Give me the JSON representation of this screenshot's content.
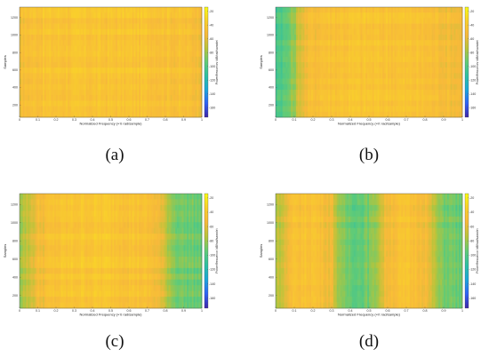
{
  "captions": [
    "(a)",
    "(b)",
    "(c)",
    "(d)"
  ],
  "chart_data": [
    {
      "type": "heatmap",
      "xlabel": "Normalized Frequency (×π rad/sample)",
      "ylabel": "Samples",
      "xticks": [
        "0",
        "0.1",
        "0.2",
        "0.3",
        "0.4",
        "0.5",
        "0.6",
        "0.7",
        "0.8",
        "0.9",
        "1"
      ],
      "yticks": [
        "200",
        "400",
        "600",
        "800",
        "1000",
        "1200"
      ],
      "colorbar_label": "Power/frequency (dB/rad/sample)",
      "colorbar_ticks": [
        "-20",
        "-40",
        "-60",
        "-80",
        "-100",
        "-120",
        "-140",
        "-160"
      ],
      "colormap": [
        "#3e26a8",
        "#2f62f6",
        "#1ba6d9",
        "#2cc0a3",
        "#62cb76",
        "#b8c43a",
        "#f7b93a",
        "#f9d02b",
        "#f9fb15"
      ],
      "profile": {
        "x": [
          0,
          0.05,
          0.1,
          0.2,
          0.3,
          0.4,
          0.5,
          0.6,
          0.7,
          0.8,
          0.9,
          1.0
        ],
        "v": [
          0.76,
          0.79,
          0.8,
          0.81,
          0.81,
          0.81,
          0.81,
          0.81,
          0.81,
          0.8,
          0.79,
          0.77
        ]
      }
    },
    {
      "type": "heatmap",
      "xlabel": "Normalized Frequency (×π rad/sample)",
      "ylabel": "Samples",
      "xticks": [
        "0",
        "0.1",
        "0.2",
        "0.3",
        "0.4",
        "0.5",
        "0.6",
        "0.7",
        "0.8",
        "0.9",
        "1"
      ],
      "yticks": [
        "200",
        "400",
        "600",
        "800",
        "1000",
        "1200"
      ],
      "colorbar_label": "Power/frequency (dB/rad/sample)",
      "colorbar_ticks": [
        "-20",
        "-40",
        "-60",
        "-80",
        "-100",
        "-120",
        "-140",
        "-160"
      ],
      "colormap": [
        "#3e26a8",
        "#2f62f6",
        "#1ba6d9",
        "#2cc0a3",
        "#62cb76",
        "#b8c43a",
        "#f7b93a",
        "#f9d02b",
        "#f9fb15"
      ],
      "profile": {
        "x": [
          0,
          0.05,
          0.1,
          0.13,
          0.18,
          0.25,
          0.4,
          0.6,
          0.75,
          0.85,
          0.95,
          1.0
        ],
        "v": [
          0.46,
          0.48,
          0.58,
          0.7,
          0.77,
          0.8,
          0.81,
          0.81,
          0.8,
          0.78,
          0.76,
          0.75
        ]
      }
    },
    {
      "type": "heatmap",
      "xlabel": "Normalized Frequency (×π rad/sample)",
      "ylabel": "Samples",
      "xticks": [
        "0",
        "0.1",
        "0.2",
        "0.3",
        "0.4",
        "0.5",
        "0.6",
        "0.7",
        "0.8",
        "0.9",
        "1"
      ],
      "yticks": [
        "200",
        "400",
        "600",
        "800",
        "1000",
        "1200"
      ],
      "colorbar_label": "Power/frequency (dB/rad/sample)",
      "colorbar_ticks": [
        "-20",
        "-40",
        "-60",
        "-80",
        "-100",
        "-120",
        "-140",
        "-160"
      ],
      "colormap": [
        "#3e26a8",
        "#2f62f6",
        "#1ba6d9",
        "#2cc0a3",
        "#62cb76",
        "#b8c43a",
        "#f7b93a",
        "#f9d02b",
        "#f9fb15"
      ],
      "profile": {
        "x": [
          0,
          0.05,
          0.1,
          0.2,
          0.35,
          0.5,
          0.65,
          0.75,
          0.8,
          0.85,
          0.9,
          1.0
        ],
        "v": [
          0.6,
          0.66,
          0.75,
          0.8,
          0.82,
          0.82,
          0.8,
          0.76,
          0.66,
          0.55,
          0.52,
          0.51
        ]
      }
    },
    {
      "type": "heatmap",
      "xlabel": "Normalized Frequency (×π rad/sample)",
      "ylabel": "Samples",
      "xticks": [
        "0",
        "0.1",
        "0.2",
        "0.3",
        "0.4",
        "0.5",
        "0.6",
        "0.7",
        "0.8",
        "0.9",
        "1"
      ],
      "yticks": [
        "200",
        "400",
        "600",
        "800",
        "1000",
        "1200"
      ],
      "colorbar_label": "Power/frequency (dB/rad/sample)",
      "colorbar_ticks": [
        "-20",
        "-40",
        "-60",
        "-80",
        "-100",
        "-120",
        "-140",
        "-160"
      ],
      "colormap": [
        "#3e26a8",
        "#2f62f6",
        "#1ba6d9",
        "#2cc0a3",
        "#62cb76",
        "#b8c43a",
        "#f7b93a",
        "#f9d02b",
        "#f9fb15"
      ],
      "profile": {
        "x": [
          0,
          0.05,
          0.1,
          0.2,
          0.3,
          0.35,
          0.45,
          0.52,
          0.6,
          0.7,
          0.8,
          0.88,
          1.0
        ],
        "v": [
          0.62,
          0.7,
          0.79,
          0.81,
          0.74,
          0.54,
          0.5,
          0.55,
          0.77,
          0.8,
          0.77,
          0.55,
          0.5
        ]
      }
    }
  ]
}
